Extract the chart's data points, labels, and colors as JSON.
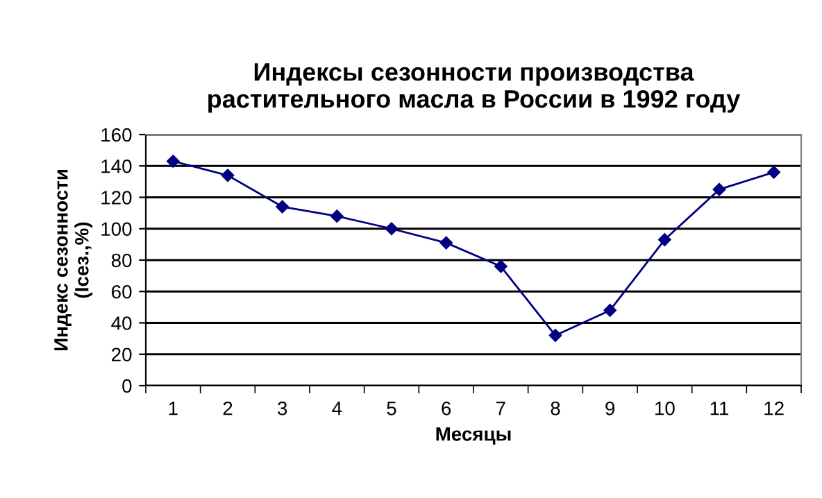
{
  "chart_data": {
    "type": "line",
    "title": "Индексы сезонности производства\nрастительного масла в России в 1992 году",
    "xlabel": "Месяцы",
    "ylabel": "Индекс сезонности\n(Iсез.,%)",
    "categories": [
      "1",
      "2",
      "3",
      "4",
      "5",
      "6",
      "7",
      "8",
      "9",
      "10",
      "11",
      "12"
    ],
    "series": [
      {
        "color": "#000080",
        "values": [
          143,
          134,
          114,
          108,
          100,
          91,
          76,
          32,
          48,
          93,
          125,
          136
        ]
      }
    ],
    "ylim": [
      0,
      160
    ],
    "yticks": [
      0,
      20,
      40,
      60,
      80,
      100,
      120,
      140,
      160
    ],
    "grid": "y",
    "marker": "diamond",
    "line_style": "solid",
    "legend": false
  }
}
